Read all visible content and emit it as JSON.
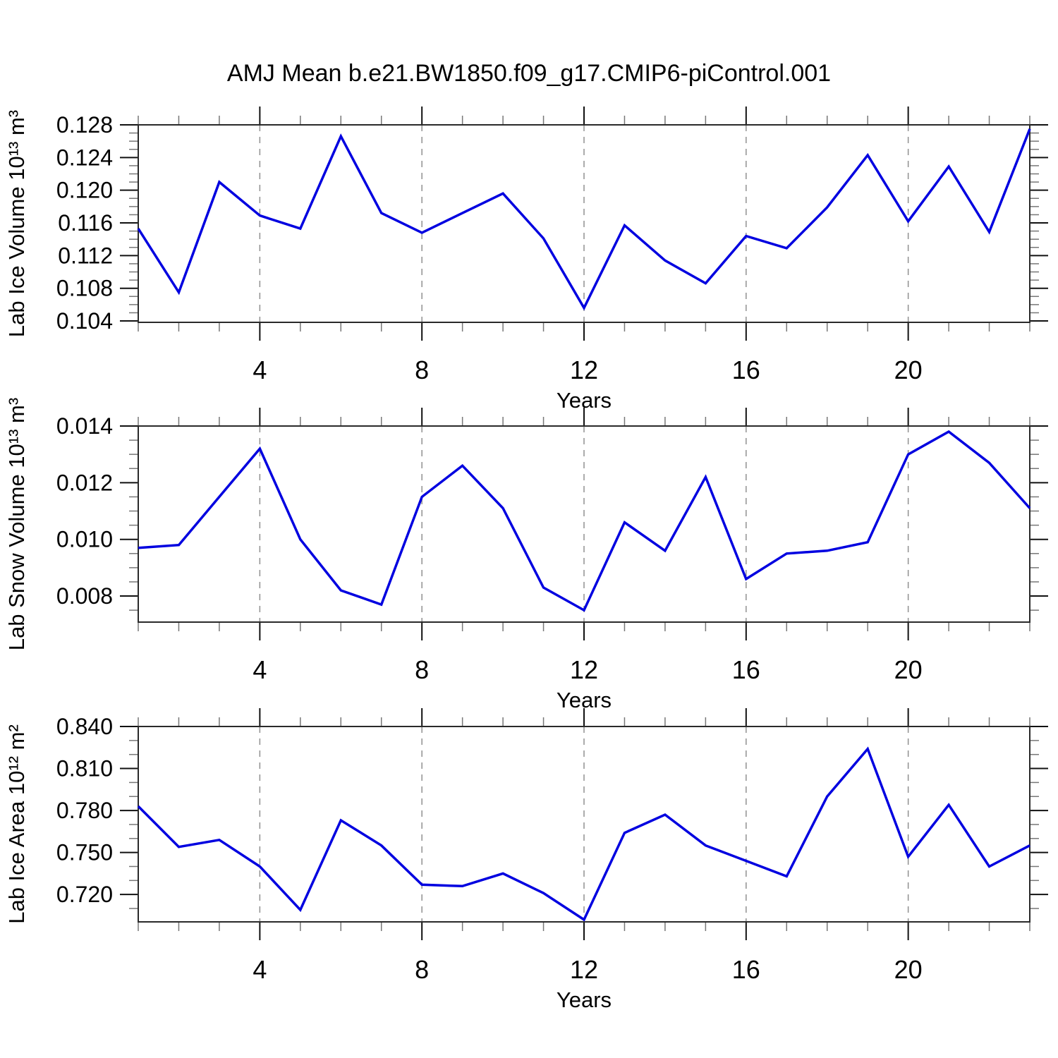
{
  "title": "AMJ Mean b.e21.BW1850.f09_g17.CMIP6-piControl.001",
  "colors": {
    "line": "#0000e0",
    "grid_dash": "#909090",
    "frame": "#2a2a2a",
    "tick_major": "#111111",
    "tick_minor": "#777777",
    "text": "#000000"
  },
  "chart_data": [
    {
      "type": "line",
      "name": "lab-ice-volume",
      "ylabel": "Lab Ice Volume 10¹³ m³",
      "xlabel": "Years",
      "x": [
        1,
        2,
        3,
        4,
        5,
        6,
        7,
        8,
        9,
        10,
        11,
        12,
        13,
        14,
        15,
        16,
        17,
        18,
        19,
        20,
        21,
        22,
        23
      ],
      "values": [
        0.1153,
        0.1075,
        0.121,
        0.1169,
        0.1153,
        0.1266,
        0.1172,
        0.1148,
        0.1172,
        0.1196,
        0.1141,
        0.1056,
        0.1157,
        0.1114,
        0.1086,
        0.1144,
        0.1129,
        0.1179,
        0.1243,
        0.1162,
        0.1229,
        0.1149,
        0.1275
      ],
      "xlim": [
        1,
        23
      ],
      "ylim": [
        0.10383,
        0.128
      ],
      "yticks": [
        0.104,
        0.108,
        0.112,
        0.116,
        0.12,
        0.124,
        0.128
      ],
      "ytick_labels": [
        "0.104",
        "0.108",
        "0.112",
        "0.116",
        "0.120",
        "0.124",
        "0.128"
      ],
      "yminor_step": 0.001,
      "xticks_major": [
        4,
        8,
        12,
        16,
        20
      ],
      "xtick_labels": [
        "4",
        "8",
        "12",
        "16",
        "20"
      ],
      "xminor_step": 1,
      "grid_x": [
        4,
        8,
        12,
        16,
        20
      ],
      "grid_on": true,
      "legend": "none"
    },
    {
      "type": "line",
      "name": "lab-snow-volume",
      "ylabel": "Lab Snow Volume 10¹³ m³",
      "xlabel": "Years",
      "x": [
        1,
        2,
        3,
        4,
        5,
        6,
        7,
        8,
        9,
        10,
        11,
        12,
        13,
        14,
        15,
        16,
        17,
        18,
        19,
        20,
        21,
        22,
        23
      ],
      "values": [
        0.0097,
        0.0098,
        0.0115,
        0.0132,
        0.01,
        0.0082,
        0.0077,
        0.0115,
        0.0126,
        0.0111,
        0.0083,
        0.0075,
        0.0106,
        0.0096,
        0.0122,
        0.0086,
        0.0095,
        0.0096,
        0.0099,
        0.013,
        0.0138,
        0.0127,
        0.0111
      ],
      "xlim": [
        1,
        23
      ],
      "ylim": [
        0.00708,
        0.014
      ],
      "yticks": [
        0.008,
        0.01,
        0.012,
        0.014
      ],
      "ytick_labels": [
        "0.008",
        "0.010",
        "0.012",
        "0.014"
      ],
      "yminor_step": 0.0005,
      "xticks_major": [
        4,
        8,
        12,
        16,
        20
      ],
      "xtick_labels": [
        "4",
        "8",
        "12",
        "16",
        "20"
      ],
      "xminor_step": 1,
      "grid_x": [
        4,
        8,
        12,
        16,
        20
      ],
      "grid_on": true,
      "legend": "none"
    },
    {
      "type": "line",
      "name": "lab-ice-area",
      "ylabel": "Lab Ice Area 10¹² m²",
      "xlabel": "Years",
      "x": [
        1,
        2,
        3,
        4,
        5,
        6,
        7,
        8,
        9,
        10,
        11,
        12,
        13,
        14,
        15,
        16,
        17,
        18,
        19,
        20,
        21,
        22,
        23
      ],
      "values": [
        0.783,
        0.754,
        0.759,
        0.74,
        0.709,
        0.773,
        0.755,
        0.727,
        0.726,
        0.735,
        0.721,
        0.702,
        0.764,
        0.777,
        0.755,
        0.744,
        0.733,
        0.79,
        0.824,
        0.747,
        0.784,
        0.74,
        0.755
      ],
      "xlim": [
        1,
        23
      ],
      "ylim": [
        0.70043,
        0.84
      ],
      "yticks": [
        0.72,
        0.75,
        0.78,
        0.81,
        0.84
      ],
      "ytick_labels": [
        "0.720",
        "0.750",
        "0.780",
        "0.810",
        "0.840"
      ],
      "yminor_step": 0.01,
      "xticks_major": [
        4,
        8,
        12,
        16,
        20
      ],
      "xtick_labels": [
        "4",
        "8",
        "12",
        "16",
        "20"
      ],
      "xminor_step": 1,
      "grid_x": [
        4,
        8,
        12,
        16,
        20
      ],
      "grid_on": true,
      "legend": "none"
    }
  ]
}
